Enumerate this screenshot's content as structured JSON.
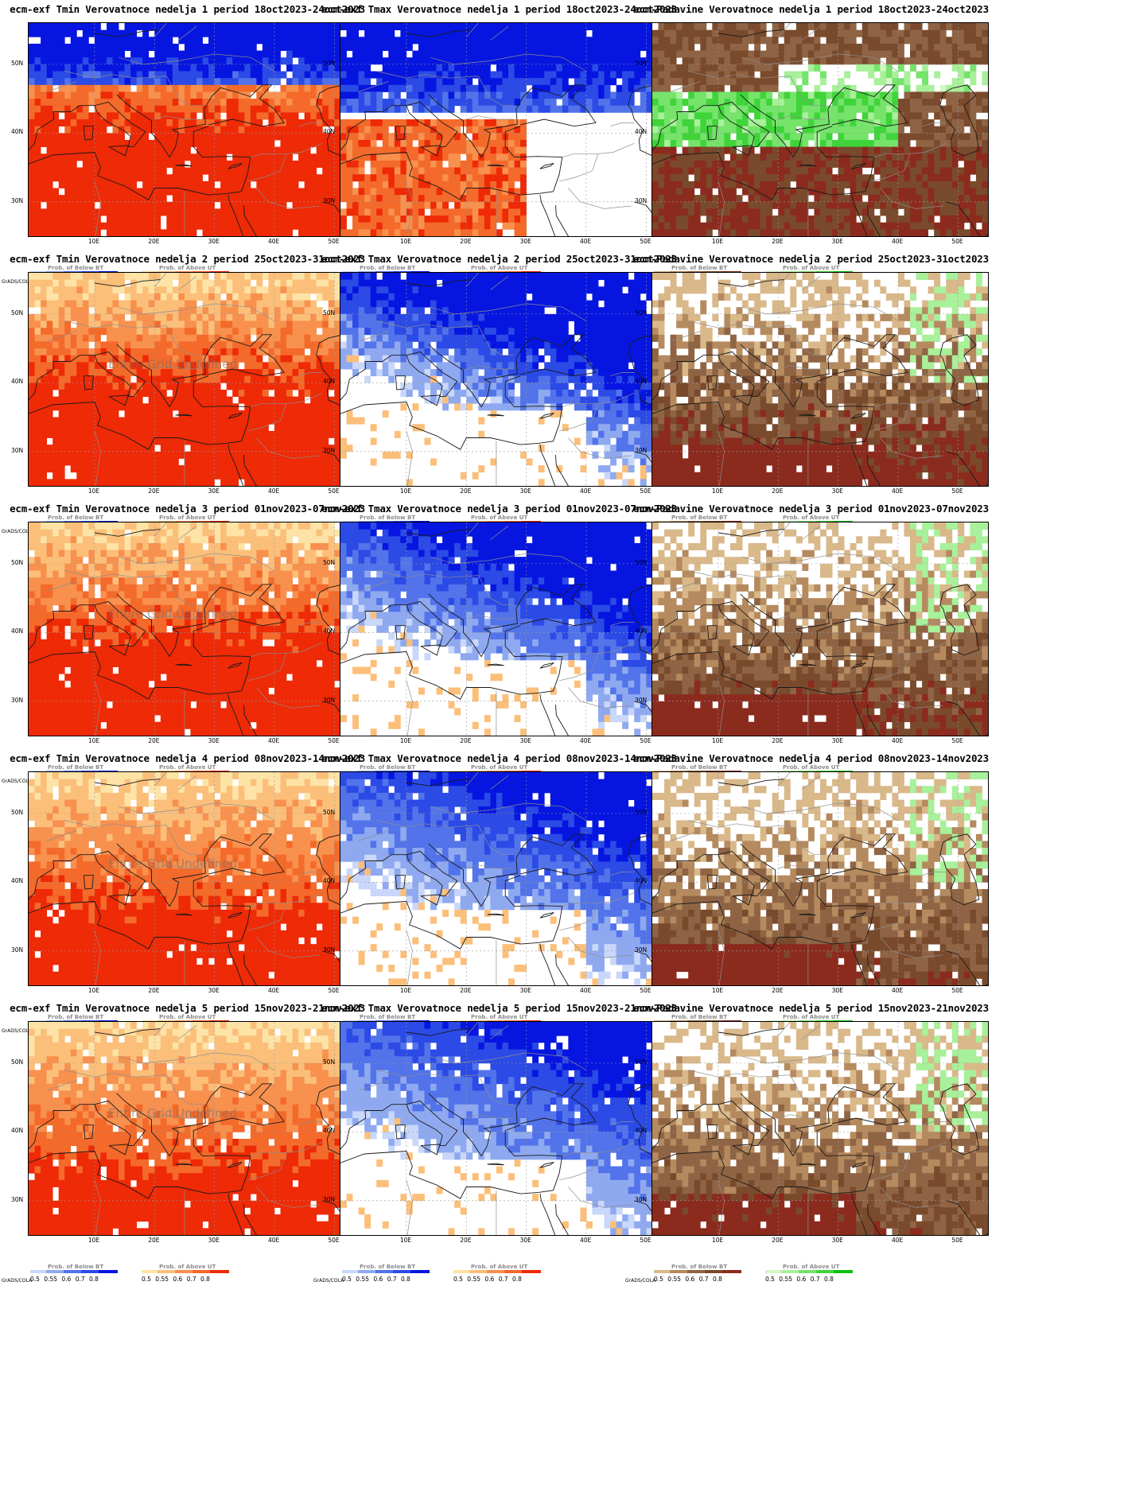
{
  "panels": [
    {
      "row": 0,
      "col": 0,
      "title": "ecm-exf Tmin Verovatnoce nedelja 1 period 18oct2023-24oct2023",
      "kind": "tmin",
      "undefined": false,
      "intensity": 1.0
    },
    {
      "row": 0,
      "col": 1,
      "title": "ecm-exf Tmax Verovatnoce nedelja 1 period 18oct2023-24oct2023",
      "kind": "tmax",
      "undefined": false,
      "intensity": 1.0
    },
    {
      "row": 0,
      "col": 2,
      "title": "ecm-Padavine Verovatnoce nedelja 1 period 18oct2023-24oct2023",
      "kind": "prec",
      "undefined": false,
      "intensity": 1.0
    },
    {
      "row": 1,
      "col": 0,
      "title": "ecm-exf Tmin Verovatnoce nedelja 2 period 25oct2023-31oct2023",
      "kind": "tmin",
      "undefined": true,
      "intensity": 0.9
    },
    {
      "row": 1,
      "col": 1,
      "title": "ecm-exf Tmax Verovatnoce nedelja 2 period 25oct2023-31oct2023",
      "kind": "tmax",
      "undefined": false,
      "intensity": 0.9
    },
    {
      "row": 1,
      "col": 2,
      "title": "ecm-Padavine Verovatnoce nedelja 2 period 25oct2023-31oct2023",
      "kind": "prec",
      "undefined": false,
      "intensity": 0.9
    },
    {
      "row": 2,
      "col": 0,
      "title": "ecm-exf Tmin Verovatnoce nedelja 3 period 01nov2023-07nov2023",
      "kind": "tmin",
      "undefined": true,
      "intensity": 0.85
    },
    {
      "row": 2,
      "col": 1,
      "title": "ecm-exf Tmax Verovatnoce nedelja 3 period 01nov2023-07nov2023",
      "kind": "tmax",
      "undefined": false,
      "intensity": 0.75
    },
    {
      "row": 2,
      "col": 2,
      "title": "ecm-Padavine Verovatnoce nedelja 3 period 01nov2023-07nov2023",
      "kind": "prec",
      "undefined": false,
      "intensity": 0.75
    },
    {
      "row": 3,
      "col": 0,
      "title": "ecm-exf Tmin Verovatnoce nedelja 4 period 08nov2023-14nov2023",
      "kind": "tmin",
      "undefined": true,
      "intensity": 0.7
    },
    {
      "row": 3,
      "col": 1,
      "title": "ecm-exf Tmax Verovatnoce nedelja 4 period 08nov2023-14nov2023",
      "kind": "tmax",
      "undefined": false,
      "intensity": 0.6
    },
    {
      "row": 3,
      "col": 2,
      "title": "ecm-Padavine Verovatnoce nedelja 4 period 08nov2023-14nov2023",
      "kind": "prec",
      "undefined": false,
      "intensity": 0.65
    },
    {
      "row": 4,
      "col": 0,
      "title": "ecm-exf Tmin Verovatnoce nedelja 5 period 15nov2023-21nov2023",
      "kind": "tmin",
      "undefined": true,
      "intensity": 0.65
    },
    {
      "row": 4,
      "col": 1,
      "title": "ecm-exf Tmax Verovatnoce nedelja 5 period 15nov2023-21nov2023",
      "kind": "tmax",
      "undefined": false,
      "intensity": 0.55
    },
    {
      "row": 4,
      "col": 2,
      "title": "ecm-Padavine Verovatnoce nedelja 5 period 15nov2023-21nov2023",
      "kind": "prec",
      "undefined": false,
      "intensity": 0.6
    }
  ],
  "common": {
    "lat_labels": [
      "50N",
      "40N",
      "30N"
    ],
    "lon_labels": [
      "10E",
      "20E",
      "30E",
      "40E",
      "50E"
    ],
    "grads_label": "GrADS/COLA",
    "undefined_text": "Entire Grid Undefined",
    "tick_labels": "0.5 0.55 0.6 0.7 0.8",
    "legend_below_title": "Prob. of Below BT",
    "legend_above_title": "Prob. of Above UT"
  },
  "palettes": {
    "blue": [
      "#c8d7fa",
      "#8fa9f0",
      "#5273ea",
      "#2b4ae6",
      "#0616e0"
    ],
    "orange": [
      "#fde3a6",
      "#fbbf7a",
      "#f8904e",
      "#f46a2a",
      "#ee2a07"
    ],
    "brown": [
      "#d9b88a",
      "#b58a5e",
      "#8f6444",
      "#7a4a2c",
      "#8b2b1e"
    ],
    "green": [
      "#d3f7c7",
      "#a8f09a",
      "#76e36b",
      "#3fd43a",
      "#0fbf14"
    ]
  }
}
